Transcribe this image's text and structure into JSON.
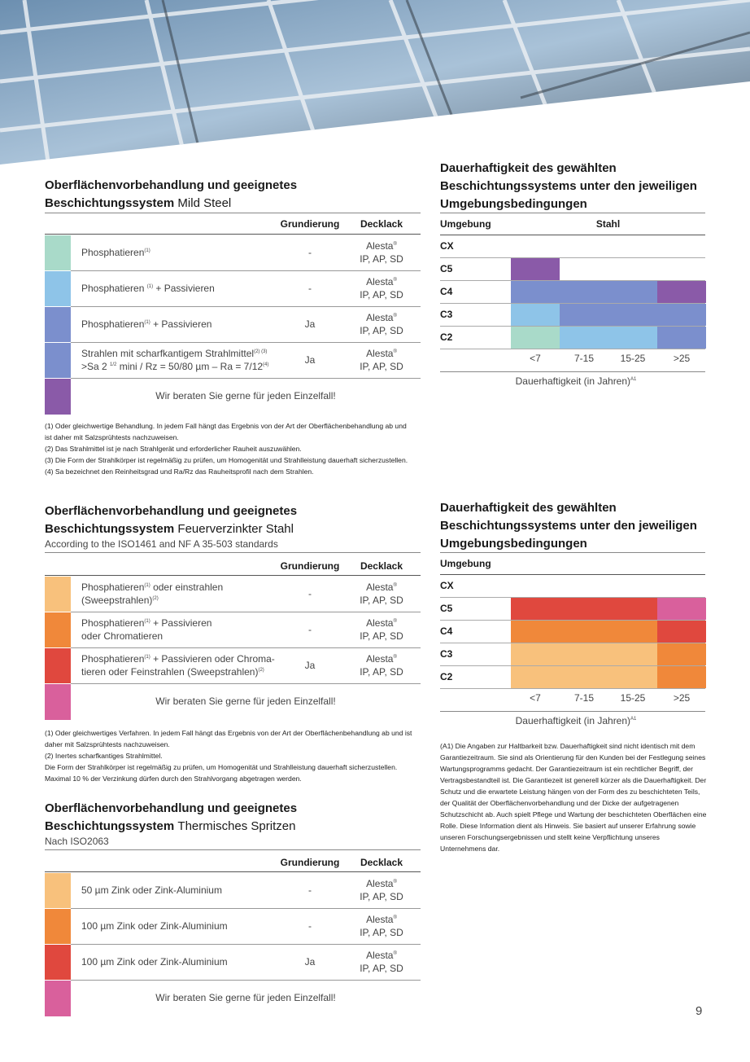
{
  "sections": [
    {
      "title": [
        "Oberflächenvorbehandlung und geeignetes",
        "Beschichtungssystem"
      ],
      "title_suffix": "Mild Steel",
      "headers": [
        "Grundierung",
        "Decklack"
      ],
      "rows": [
        {
          "color": "#a9dac9",
          "desc": [
            [
              "Phosphatieren",
              {
                "sup": "(1)"
              }
            ]
          ],
          "primer": "-",
          "top": {
            "name": "Alesta",
            "mark": "®",
            "line2": "IP, AP, SD"
          }
        },
        {
          "color": "#8ec4e8",
          "desc": [
            [
              "Phosphatieren ",
              {
                "sup": "(1)"
              },
              " + Passivieren"
            ]
          ],
          "primer": "-",
          "top": {
            "name": "Alesta",
            "mark": "®",
            "line2": "IP, AP, SD"
          }
        },
        {
          "color": "#7b8fcd",
          "desc": [
            [
              "Phosphatieren",
              {
                "sup": "(1)"
              },
              " + Passivieren"
            ]
          ],
          "primer": "Ja",
          "top": {
            "name": "Alesta",
            "mark": "®",
            "line2": "IP, AP, SD"
          }
        },
        {
          "color": "#7b8fcd",
          "desc": [
            [
              "Strahlen mit scharfkantigem Strahlmittel",
              {
                "sup": "(2) (3)"
              }
            ],
            [
              ">Sa 2 ",
              {
                "sup": "1/2"
              },
              " mini / Rz = 50/80 µm – Ra = 7/12",
              {
                "sup": "(4)"
              }
            ]
          ],
          "primer": "Ja",
          "top": {
            "name": "Alesta",
            "mark": "®",
            "line2": "IP, AP, SD"
          }
        }
      ],
      "last": {
        "color": "#8a5aa8",
        "text": "Wir beraten Sie gerne für jeden Einzelfall!"
      },
      "footnotes": [
        "(1) Oder gleichwertige Behandlung. In jedem Fall hängt das Ergebnis von der Art der Oberflächenbehandlung ab und ist daher mit Salzsprühtests nachzuweisen.",
        "(2) Das Strahlmittel ist je nach Strahlgerät und erforderlicher Rauheit auszuwählen.",
        "(3) Die Form der Strahlkörper ist regelmäßig zu prüfen, um Homogenität und Strahlleistung dauerhaft sicherzustellen.",
        "(4) Sa bezeichnet den Reinheitsgrad und Ra/Rz das Rauheitsprofil nach dem Strahlen."
      ]
    },
    {
      "title": [
        "Oberflächenvorbehandlung und geeignetes",
        "Beschichtungssystem"
      ],
      "title_suffix": "Feuerverzinkter Stahl",
      "subtitle": "According to the ISO1461 and NF A 35-503 standards",
      "headers": [
        "Grundierung",
        "Decklack"
      ],
      "rows": [
        {
          "color": "#f8c17c",
          "desc": [
            [
              "Phosphatieren",
              {
                "sup": "(1)"
              },
              " oder einstrahlen"
            ],
            [
              "(Sweepstrahlen)",
              {
                "sup": "(2)"
              }
            ]
          ],
          "primer": "-",
          "top": {
            "name": "Alesta",
            "mark": "®",
            "line2": "IP, AP, SD"
          }
        },
        {
          "color": "#f0883a",
          "desc": [
            [
              "Phosphatieren",
              {
                "sup": "(1)"
              },
              " + Passivieren"
            ],
            [
              "oder Chromatieren"
            ]
          ],
          "primer": "-",
          "top": {
            "name": "Alesta",
            "mark": "®",
            "line2": "IP, AP, SD"
          }
        },
        {
          "color": "#e0483e",
          "desc": [
            [
              "Phosphatieren",
              {
                "sup": "(1)"
              },
              " + Passivieren oder Chroma-"
            ],
            [
              "tieren oder Feinstrahlen (Sweepstrahlen)",
              {
                "sup": "(2)"
              }
            ]
          ],
          "primer": "Ja",
          "top": {
            "name": "Alesta",
            "mark": "®",
            "line2": "IP, AP, SD"
          }
        }
      ],
      "last": {
        "color": "#d9609c",
        "text": "Wir beraten Sie gerne für jeden Einzelfall!"
      },
      "footnotes": [
        "(1) Oder gleichwertiges Verfahren. In jedem Fall hängt das Ergebnis von der Art der Oberflächenbehandlung ab und ist daher mit Salzsprühtests nachzuweisen.",
        "(2) Inertes scharfkantiges Strahlmittel.",
        "Die Form der Strahlkörper ist regelmäßig zu prüfen, um Homogenität und Strahlleistung dauerhaft sicherzustellen. Maximal 10 % der Verzinkung dürfen durch den Strahlvorgang abgetragen werden."
      ]
    },
    {
      "title": [
        "Oberflächenvorbehandlung und geeignetes",
        "Beschichtungssystem"
      ],
      "title_suffix": "Thermisches Spritzen",
      "subtitle": "Nach ISO2063",
      "headers": [
        "Grundierung",
        "Decklack"
      ],
      "rows": [
        {
          "color": "#f8c17c",
          "desc": [
            [
              "50 µm Zink oder Zink-Aluminium"
            ]
          ],
          "primer": "-",
          "top": {
            "name": "Alesta",
            "mark": "®",
            "line2": "IP, AP, SD"
          }
        },
        {
          "color": "#f0883a",
          "desc": [
            [
              "100 µm Zink oder Zink-Aluminium"
            ]
          ],
          "primer": "-",
          "top": {
            "name": "Alesta",
            "mark": "®",
            "line2": "IP, AP, SD"
          }
        },
        {
          "color": "#e0483e",
          "desc": [
            [
              "100 µm Zink oder Zink-Aluminium"
            ]
          ],
          "primer": "Ja",
          "top": {
            "name": "Alesta",
            "mark": "®",
            "line2": "IP, AP, SD"
          }
        }
      ],
      "last": {
        "color": "#d9609c",
        "text": "Wir beraten Sie gerne für jeden Einzelfall!"
      }
    }
  ],
  "durability": [
    {
      "title": [
        "Dauerhaftigkeit des gewählten",
        "Beschichtungssystems unter den jeweiligen",
        "Umgebungsbedingungen"
      ],
      "row_header": "Umgebung",
      "col_header": "Stahl",
      "rows": [
        "CX",
        "C5",
        "C4",
        "C3",
        "C2"
      ],
      "columns": [
        "<7",
        "7-15",
        "15-25",
        ">25"
      ],
      "cells": [
        [
          null,
          null,
          null,
          null
        ],
        [
          "#8a5aa8",
          null,
          null,
          null
        ],
        [
          "#7b8fcd",
          "#7b8fcd",
          "#7b8fcd",
          "#8a5aa8"
        ],
        [
          "#8ec4e8",
          "#7b8fcd",
          "#7b8fcd",
          "#7b8fcd"
        ],
        [
          "#a9dac9",
          "#8ec4e8",
          "#8ec4e8",
          "#7b8fcd"
        ]
      ],
      "axis_label": "Dauerhaftigkeit (in Jahren)",
      "axis_sup": "A1"
    },
    {
      "title": [
        "Dauerhaftigkeit des gewählten",
        "Beschichtungssystems unter den jeweiligen",
        "Umgebungsbedingungen"
      ],
      "row_header": "Umgebung",
      "rows": [
        "CX",
        "C5",
        "C4",
        "C3",
        "C2"
      ],
      "columns": [
        "<7",
        "7-15",
        "15-25",
        ">25"
      ],
      "cells": [
        [
          null,
          null,
          null,
          null
        ],
        [
          "#e0483e",
          "#e0483e",
          "#e0483e",
          "#d9609c"
        ],
        [
          "#f0883a",
          "#f0883a",
          "#f0883a",
          "#e0483e"
        ],
        [
          "#f8c17c",
          "#f8c17c",
          "#f8c17c",
          "#f0883a"
        ],
        [
          "#f8c17c",
          "#f8c17c",
          "#f8c17c",
          "#f0883a"
        ]
      ],
      "axis_label": "Dauerhaftigkeit (in Jahren)",
      "axis_sup": "A1"
    }
  ],
  "note": "(A1) Die Angaben zur Haltbarkeit bzw. Dauerhaftigkeit sind nicht identisch mit dem Garantiezeitraum. Sie sind als Orientierung für den Kunden bei der Festlegung seines Wartungsprogramms gedacht. Der Garantiezeitraum ist ein rechtlicher Begriff, der Vertragsbestandteil ist. Die Garantiezeit ist generell kürzer als die Dauerhaftigkeit. Der Schutz und die erwartete Leistung hängen von der Form des zu beschichteten Teils, der Qualität der Oberflächenvorbehandlung und der Dicke der aufgetragenen Schutzschicht ab. Auch spielt Pflege und Wartung der beschichteten Oberflächen eine Rolle. Diese Information dient als Hinweis. Sie basiert auf unserer Erfahrung sowie unseren Forschungsergebnissen und stellt keine Verpflichtung unseres Unternehmens dar.",
  "page_number": "9"
}
